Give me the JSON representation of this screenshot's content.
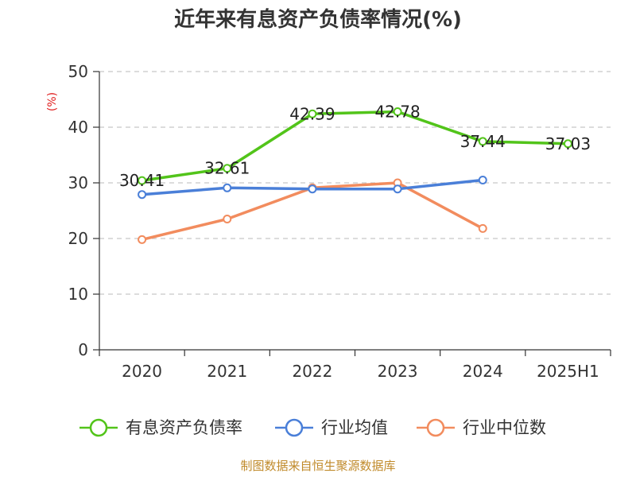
{
  "chart_data": {
    "type": "line",
    "title": "近年来有息资产负债率情况(%)",
    "ylabel": "(%)",
    "ylim": [
      0,
      50
    ],
    "yticks": [
      0,
      10,
      20,
      30,
      40,
      50
    ],
    "categories": [
      "2020",
      "2021",
      "2022",
      "2023",
      "2024",
      "2025H1"
    ],
    "grid": true,
    "legend_position": "bottom",
    "series": [
      {
        "name": "有息资产负债率",
        "color": "#52c41a",
        "values": [
          30.41,
          32.61,
          42.39,
          42.78,
          37.44,
          37.03
        ],
        "labels": [
          "30.41",
          "32.61",
          "42.39",
          "42.78",
          "37.44",
          "37.03"
        ]
      },
      {
        "name": "行业均值",
        "color": "#4a7fd8",
        "values": [
          27.9,
          29.1,
          28.9,
          28.9,
          30.5,
          null
        ]
      },
      {
        "name": "行业中位数",
        "color": "#f28c5e",
        "values": [
          19.8,
          23.5,
          29.1,
          30.0,
          21.8,
          null
        ]
      }
    ],
    "source": "制图数据来自恒生聚源数据库"
  }
}
